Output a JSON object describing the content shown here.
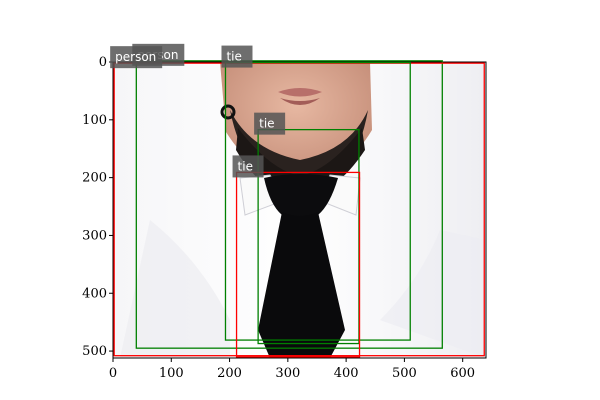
{
  "image": {
    "description": "Close-up photo of a bearded person's lower face wearing a white shirt and black tie",
    "width": 640,
    "height": 512
  },
  "axes": {
    "x_ticks": [
      0,
      100,
      200,
      300,
      400,
      500,
      600
    ],
    "y_ticks": [
      0,
      100,
      200,
      300,
      400,
      500
    ],
    "xlim": [
      0,
      640
    ],
    "ylim": [
      512,
      0
    ]
  },
  "detections": [
    {
      "label": "person",
      "color": "#008000",
      "x0": 40,
      "y0": -2,
      "x1": 565,
      "y1": 495
    },
    {
      "label": "person",
      "color": "#ff0000",
      "x0": 2,
      "y0": 2,
      "x1": 637,
      "y1": 508
    },
    {
      "label": "tie",
      "color": "#008000",
      "x0": 193,
      "y0": 1,
      "x1": 510,
      "y1": 481
    },
    {
      "label": "tie",
      "color": "#008000",
      "x0": 249,
      "y0": 117,
      "x1": 422,
      "y1": 487
    },
    {
      "label": "tie",
      "color": "#ff0000",
      "x0": 212,
      "y0": 191,
      "x1": 423,
      "y1": 510
    }
  ]
}
